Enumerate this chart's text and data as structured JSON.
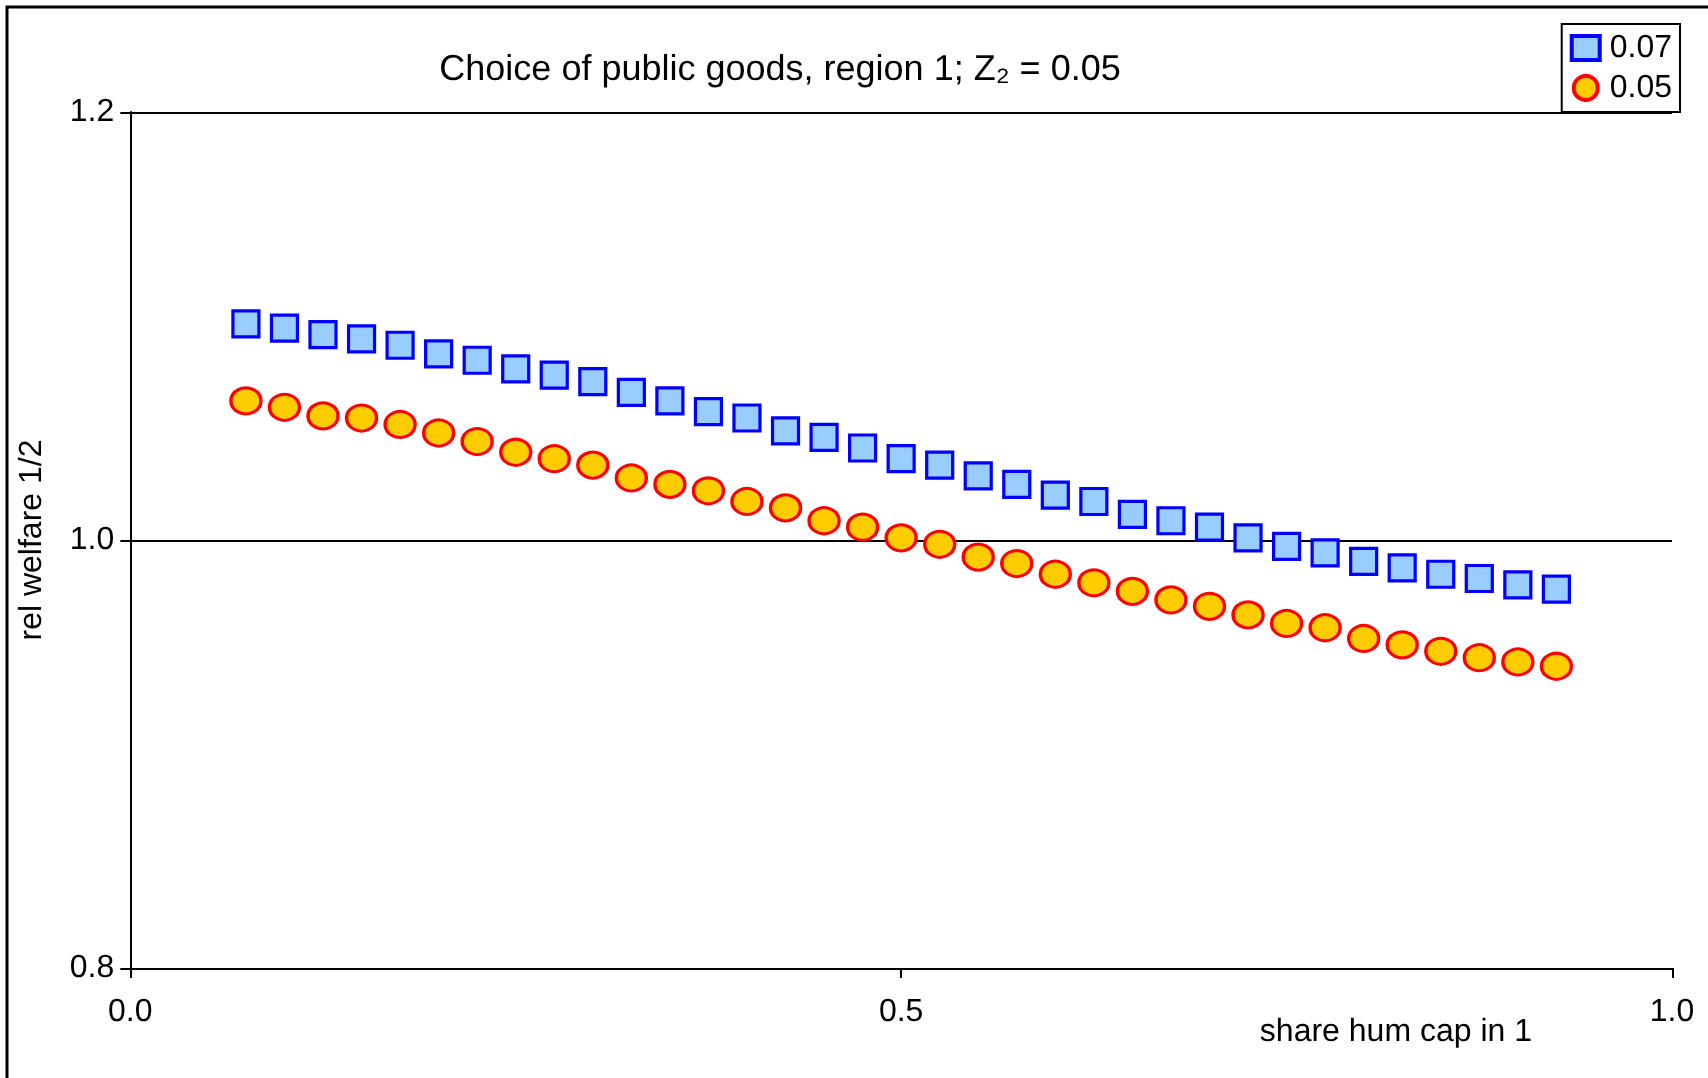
{
  "chart_data": {
    "type": "scatter",
    "title": "Choice of public goods, region 1; Z₂ = 0.05",
    "xlabel": "share hum cap in 1",
    "ylabel": "rel welfare 1/2",
    "x": [
      0.075,
      0.1,
      0.125,
      0.15,
      0.175,
      0.2,
      0.225,
      0.25,
      0.275,
      0.3,
      0.325,
      0.35,
      0.375,
      0.4,
      0.425,
      0.45,
      0.475,
      0.5,
      0.525,
      0.55,
      0.575,
      0.6,
      0.625,
      0.65,
      0.675,
      0.7,
      0.725,
      0.75,
      0.775,
      0.8,
      0.825,
      0.85,
      0.875,
      0.9,
      0.925
    ],
    "series": [
      {
        "name": "0.07",
        "color": "#99ccff",
        "marker": "square",
        "values": [
          1.101,
          1.099,
          1.096,
          1.094,
          1.091,
          1.087,
          1.084,
          1.08,
          1.077,
          1.074,
          1.069,
          1.065,
          1.06,
          1.057,
          1.051,
          1.048,
          1.043,
          1.038,
          1.035,
          1.03,
          1.026,
          1.021,
          1.018,
          1.012,
          1.009,
          1.006,
          1.001,
          0.997,
          0.994,
          0.99,
          0.987,
          0.984,
          0.982,
          0.979,
          0.977
        ]
      },
      {
        "name": "0.05",
        "color": "#ffcc00",
        "marker": "circle",
        "values": [
          1.065,
          1.062,
          1.058,
          1.057,
          1.054,
          1.05,
          1.046,
          1.041,
          1.038,
          1.035,
          1.029,
          1.026,
          1.023,
          1.018,
          1.015,
          1.009,
          1.006,
          1.001,
          0.998,
          0.992,
          0.989,
          0.984,
          0.98,
          0.976,
          0.972,
          0.969,
          0.965,
          0.961,
          0.959,
          0.954,
          0.951,
          0.948,
          0.945,
          0.943,
          0.941
        ]
      }
    ],
    "xlim": [
      0,
      1
    ],
    "xticks": [
      {
        "value": 0,
        "label": "0.0"
      },
      {
        "value": 0.5,
        "label": "0.5"
      },
      {
        "value": 1,
        "label": "1.0"
      }
    ],
    "ylim": [
      0.8,
      1.2
    ],
    "yticks": [
      {
        "value": 0.8,
        "label": "0.8"
      },
      {
        "value": 1,
        "label": "1.0"
      },
      {
        "value": 1.2,
        "label": "1.2"
      }
    ],
    "grid": "y",
    "legend": "top right"
  }
}
